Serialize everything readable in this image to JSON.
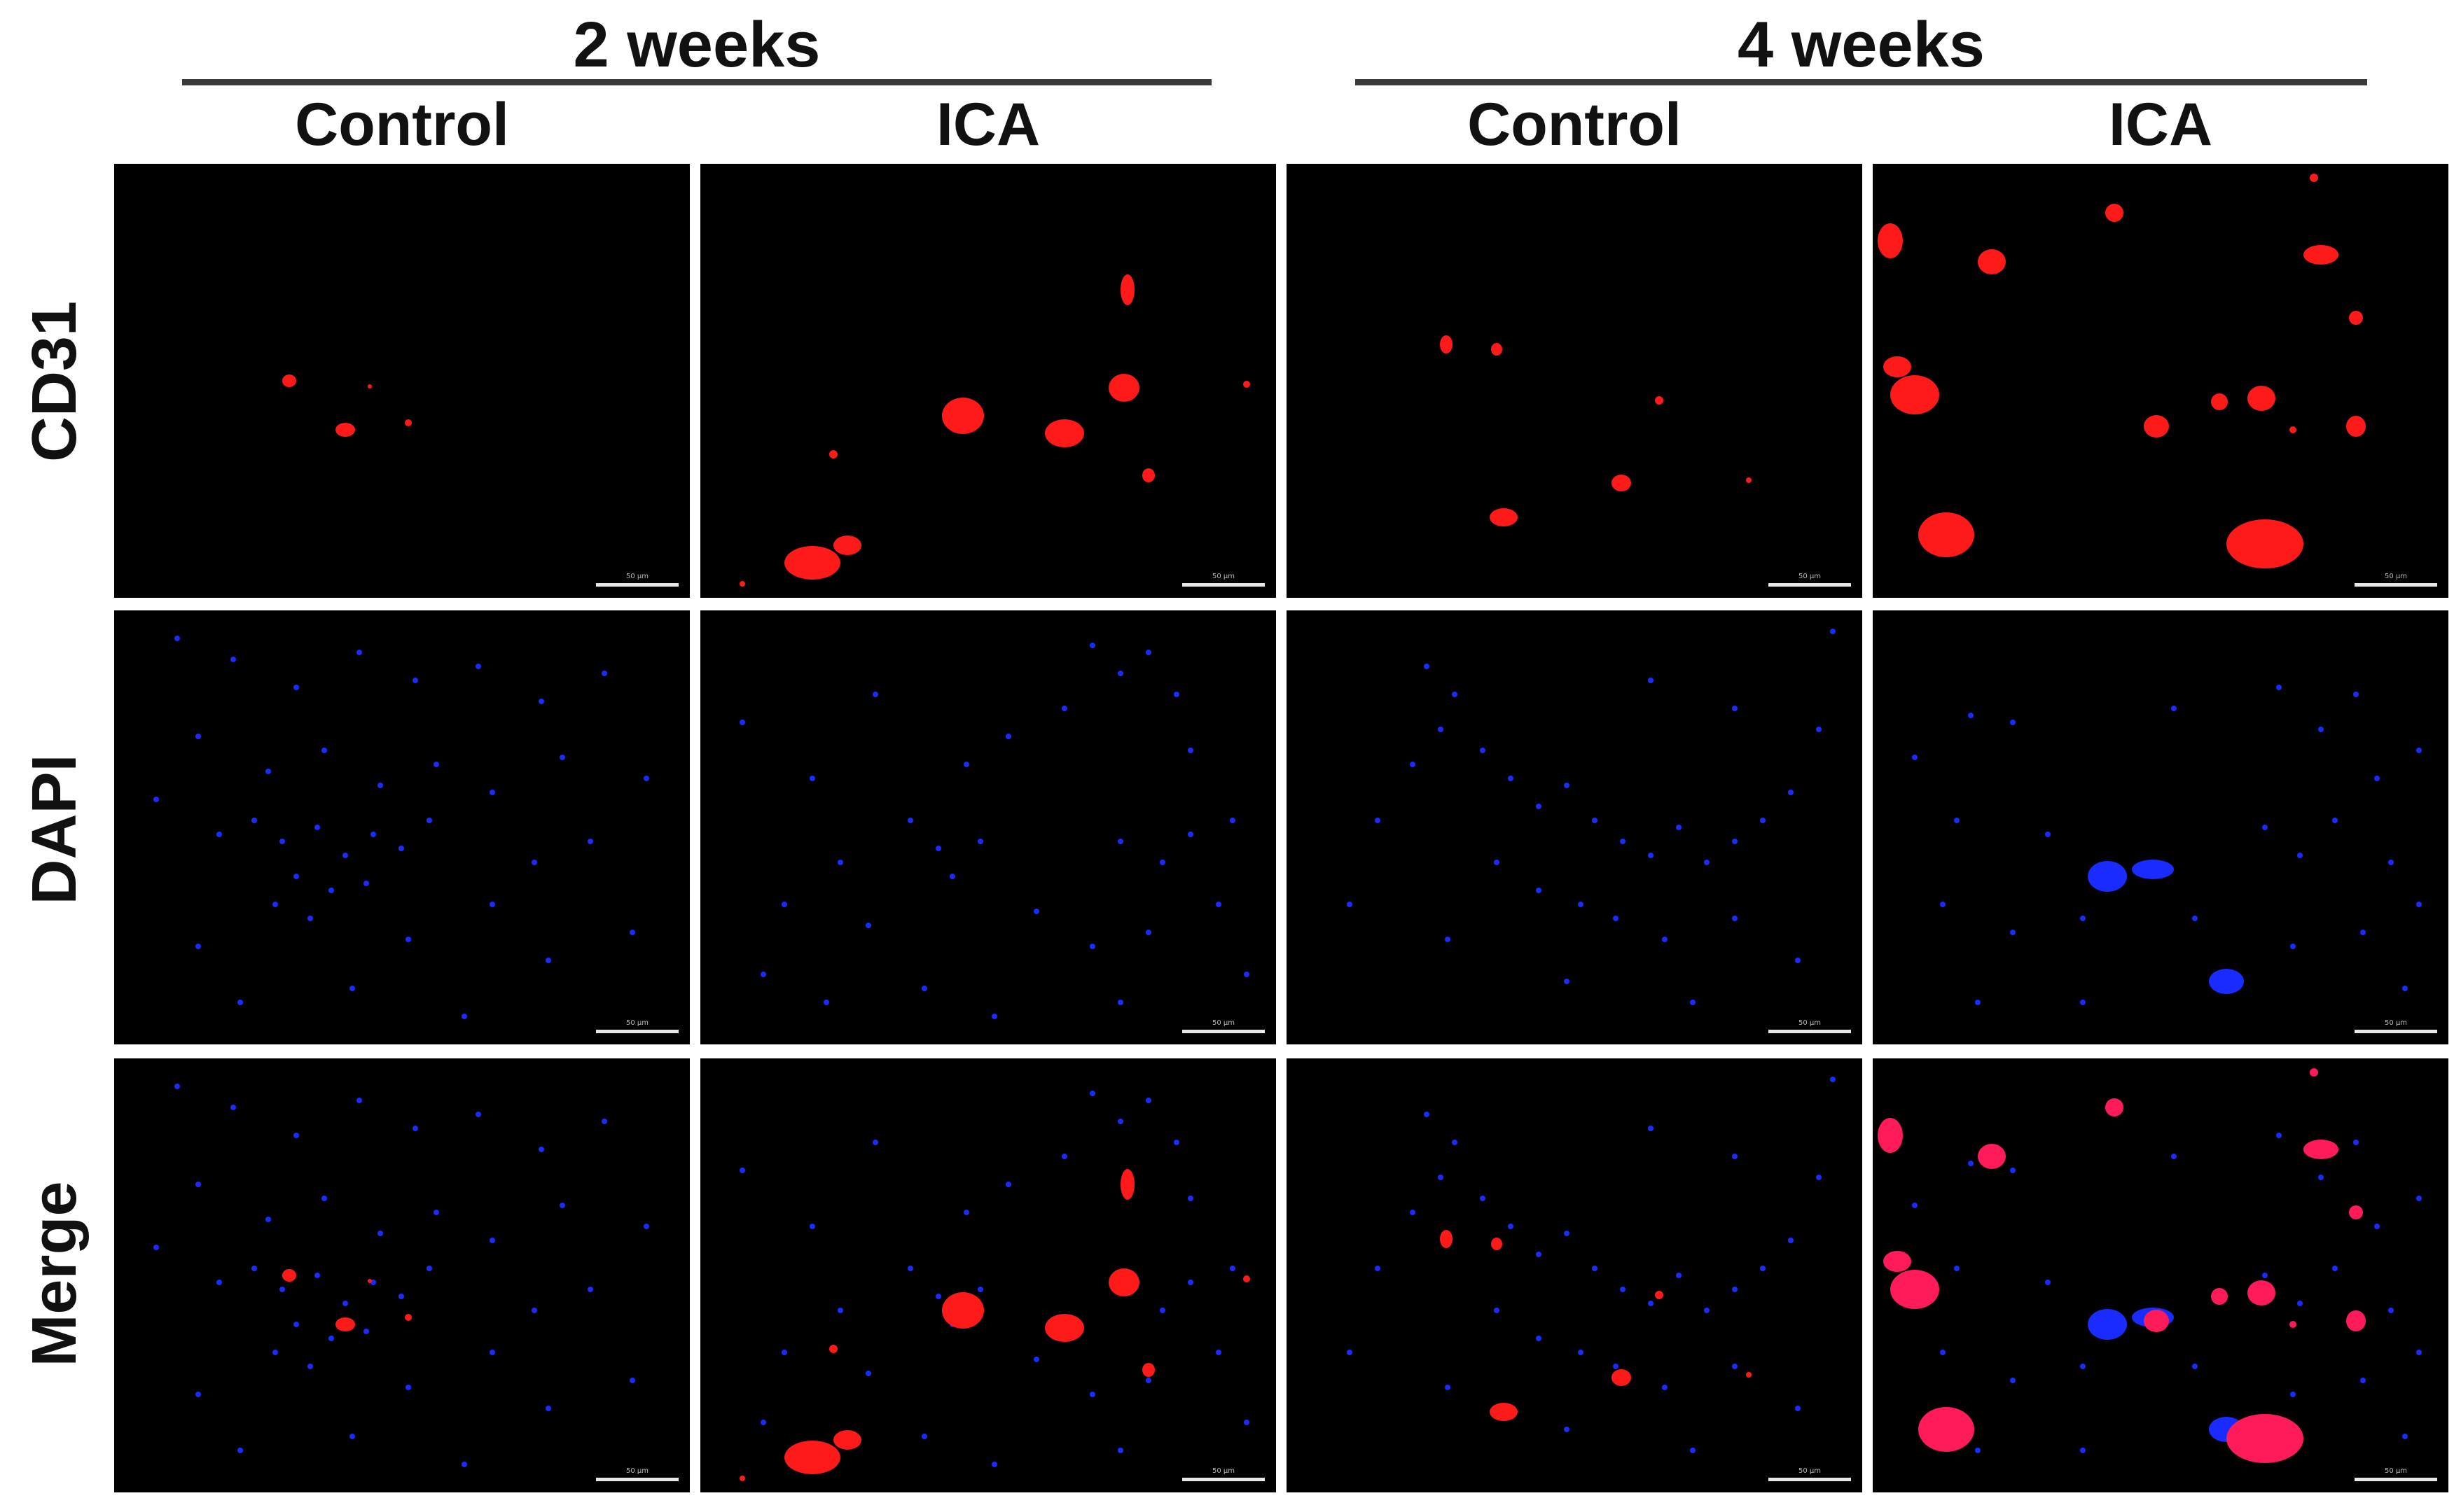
{
  "figure": {
    "groups": [
      {
        "title": "2 weeks",
        "columns": [
          "Control",
          "ICA"
        ]
      },
      {
        "title": "4 weeks",
        "columns": [
          "Control",
          "ICA"
        ]
      }
    ],
    "rows": [
      "CD31",
      "DAPI",
      "Merge"
    ],
    "scale_bar_label": "50 μm",
    "colors": {
      "cd31_stain": "#ff1a1a",
      "dapi_stain": "#1a2bff",
      "panel_background": "#000000",
      "header_rule": "#3a3a3a"
    }
  }
}
